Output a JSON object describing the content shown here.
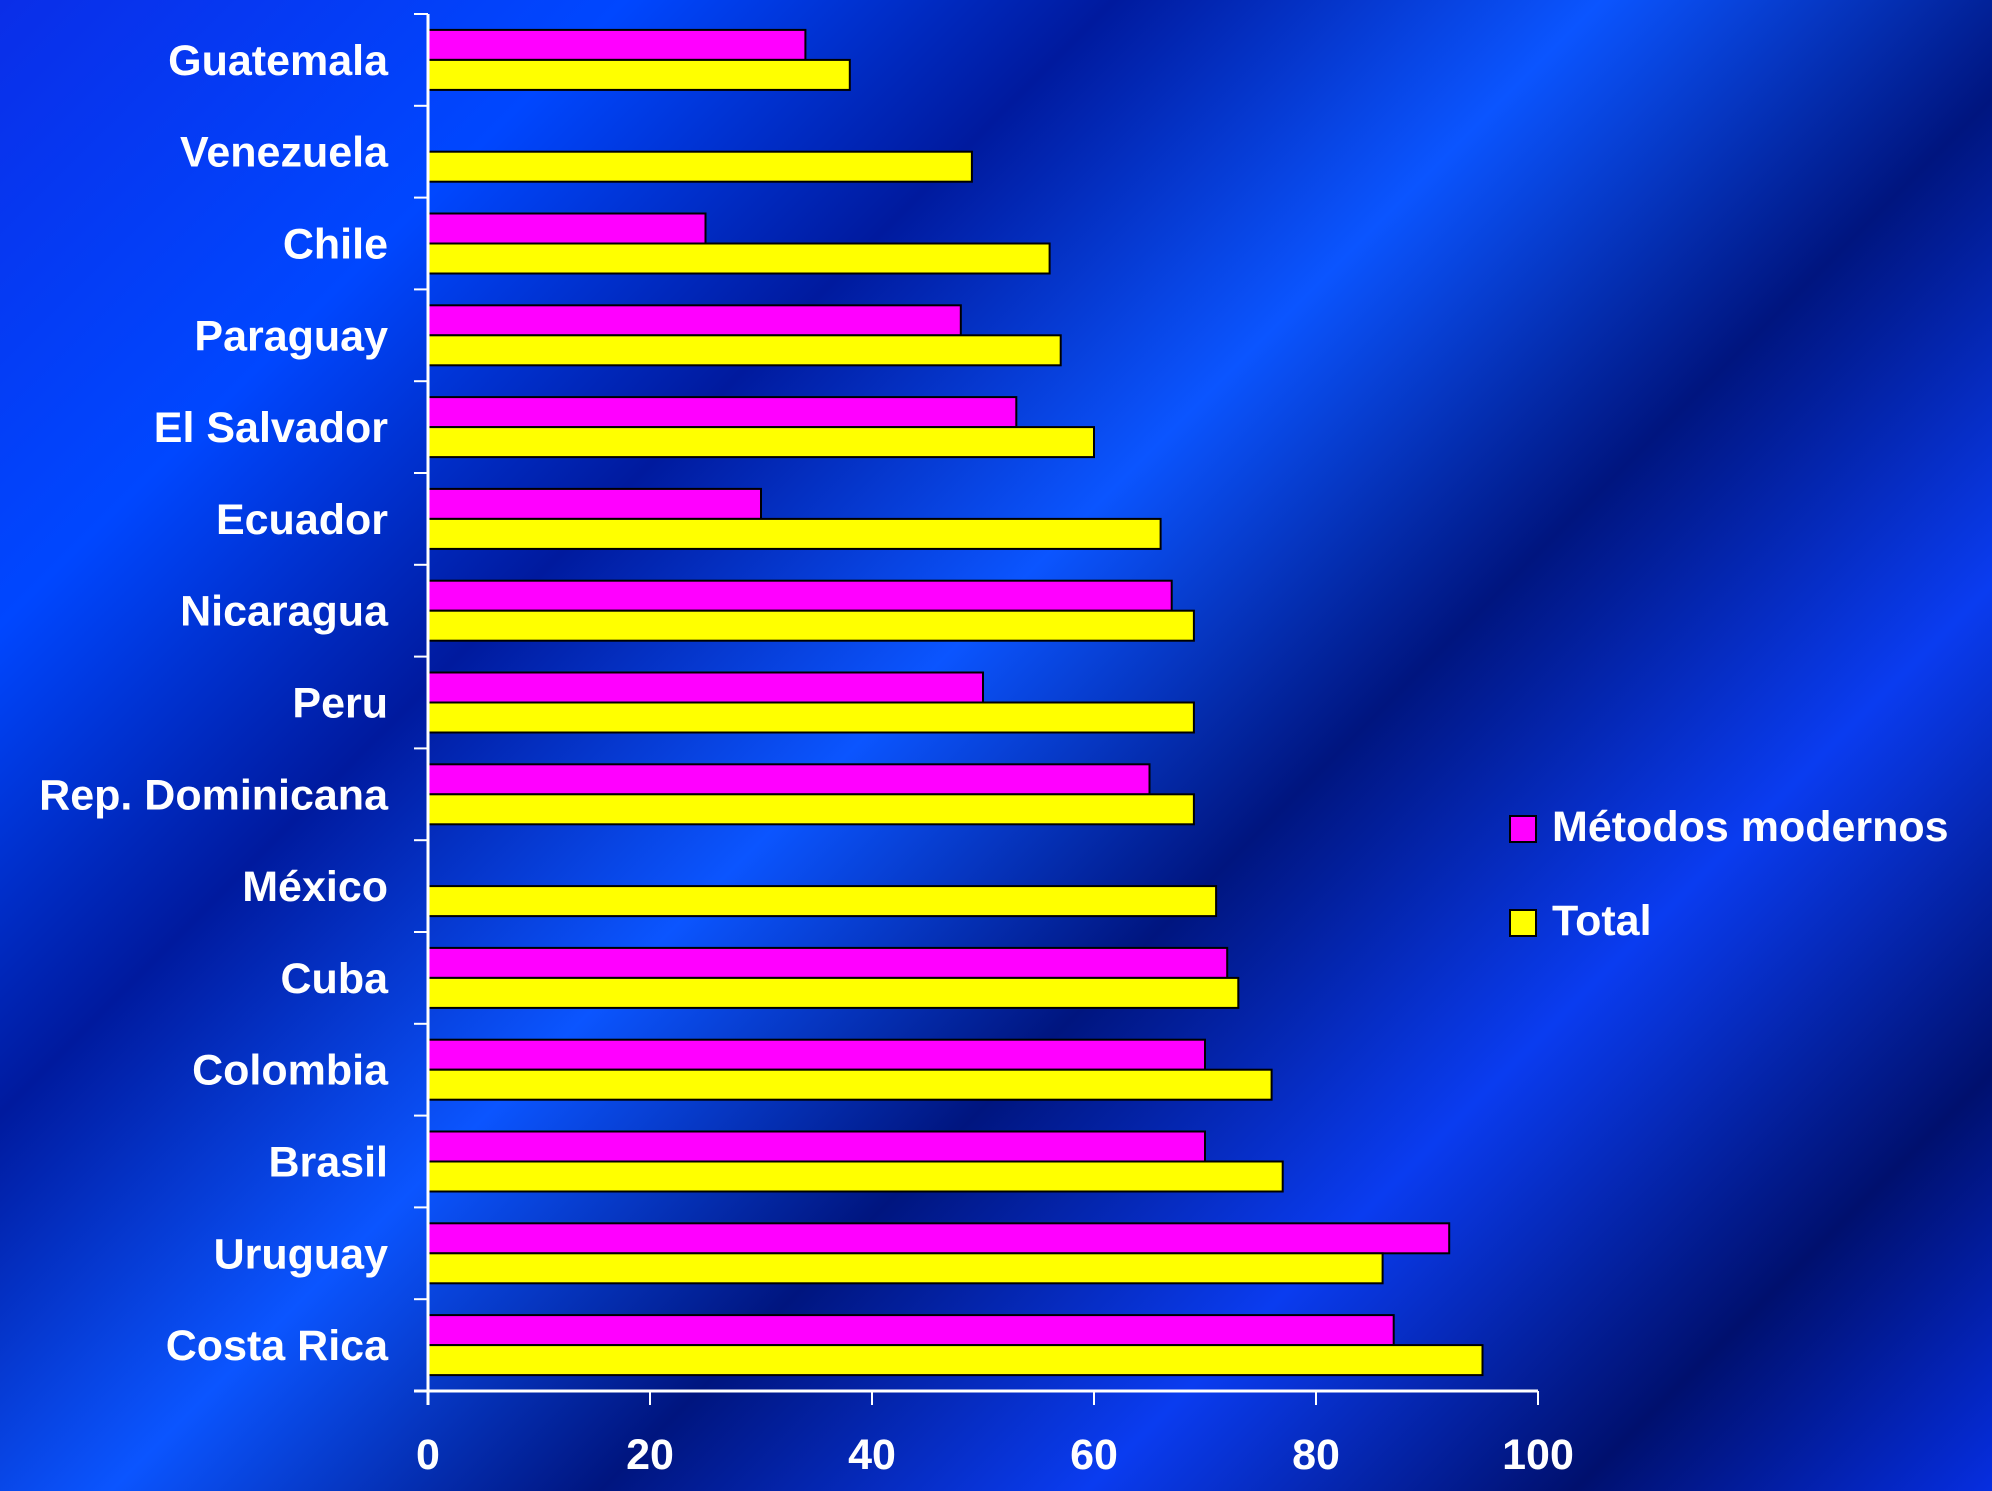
{
  "chart_data": {
    "type": "bar",
    "orientation": "horizontal",
    "categories": [
      "Guatemala",
      "Venezuela",
      "Chile",
      "Paraguay",
      "El Salvador",
      "Ecuador",
      "Nicaragua",
      "Peru",
      "Rep. Dominicana",
      "México",
      "Cuba",
      "Colombia",
      "Brasil",
      "Uruguay",
      "Costa Rica"
    ],
    "series": [
      {
        "name": "Métodos modernos",
        "color": "#ff00ff",
        "values": [
          34,
          null,
          25,
          48,
          53,
          30,
          67,
          50,
          65,
          null,
          72,
          70,
          70,
          92,
          87
        ]
      },
      {
        "name": "Total",
        "color": "#ffff00",
        "values": [
          38,
          49,
          56,
          57,
          60,
          66,
          69,
          69,
          69,
          71,
          73,
          76,
          77,
          86,
          95
        ]
      }
    ],
    "xlim": [
      0,
      100
    ],
    "xticks": [
      "0",
      "20",
      "40",
      "60",
      "80",
      "100"
    ],
    "grid": false,
    "legend": "right",
    "title": "",
    "xlabel": "",
    "ylabel": ""
  }
}
